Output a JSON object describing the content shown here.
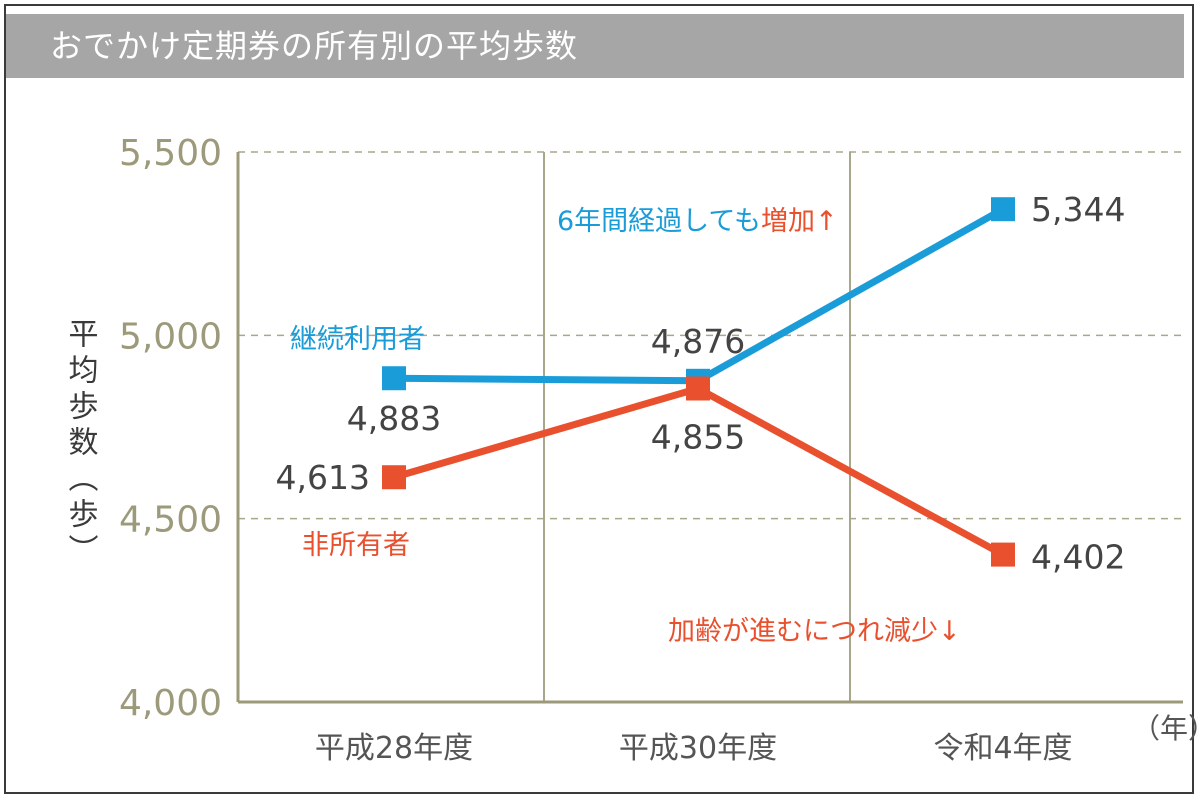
{
  "title": "おでかけ定期券の所有別の平均歩数",
  "colors": {
    "blue": "#1a9cd8",
    "red": "#e8502e",
    "axis": "#9c9a7a",
    "titlebar": "#a6a6a6"
  },
  "chart_data": {
    "type": "line",
    "title": "おでかけ定期券の所有別の平均歩数",
    "categories": [
      "平成28年度",
      "平成30年度",
      "令和4年度"
    ],
    "x_unit": "（年）",
    "ylabel": "平均歩数（歩）",
    "ylim": [
      4000,
      5500
    ],
    "yticks": [
      4000,
      4500,
      5000,
      5500
    ],
    "ytick_labels": [
      "4,000",
      "4,500",
      "5,000",
      "5,500"
    ],
    "grid": "horizontal dashed",
    "series": [
      {
        "name": "継続利用者",
        "color": "#1a9cd8",
        "values": [
          4883,
          4876,
          5344
        ],
        "labels": [
          "4,883",
          "4,876",
          "5,344"
        ]
      },
      {
        "name": "非所有者",
        "color": "#e8502e",
        "values": [
          4613,
          4855,
          4402
        ],
        "labels": [
          "4,613",
          "4,855",
          "4,402"
        ]
      }
    ],
    "annotations": {
      "increase_prefix": "6年間経過しても",
      "increase_word": "増加↑",
      "decrease": "加齢が進むにつれ減少↓"
    }
  }
}
